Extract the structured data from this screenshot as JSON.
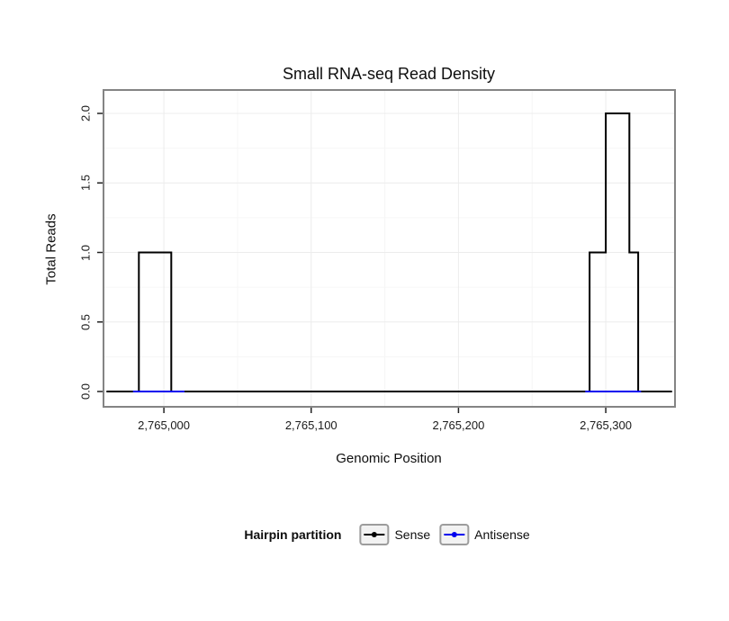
{
  "chart_data": {
    "type": "line",
    "title": "Small RNA-seq Read Density",
    "xlabel": "Genomic Position",
    "ylabel": "Total Reads",
    "legend_title": "Hairpin partition",
    "legend_position": "bottom",
    "grid": true,
    "panel_border_color": "#848484",
    "xlim": [
      2764959,
      2765347
    ],
    "ylim": [
      0,
      2
    ],
    "x_ticks": [
      {
        "value": 2765000,
        "label": "2,765,000"
      },
      {
        "value": 2765100,
        "label": "2,765,100"
      },
      {
        "value": 2765200,
        "label": "2,765,200"
      },
      {
        "value": 2765300,
        "label": "2,765,300"
      }
    ],
    "y_ticks": [
      {
        "value": 0,
        "label": "0.0"
      },
      {
        "value": 0.5,
        "label": "0.5"
      },
      {
        "value": 1,
        "label": "1.0"
      },
      {
        "value": 1.5,
        "label": "1.5"
      },
      {
        "value": 2,
        "label": "2.0"
      }
    ],
    "x_minor": [
      2765050,
      2765150,
      2765250
    ],
    "y_minor": [
      0.25,
      0.75,
      1.25,
      1.75
    ],
    "series": [
      {
        "name": "Sense",
        "color": "#000000",
        "segments": [
          [
            [
              2764961,
              0
            ],
            [
              2764983,
              0
            ],
            [
              2764983,
              1
            ],
            [
              2765005,
              1
            ],
            [
              2765005,
              0
            ],
            [
              2765289,
              0
            ],
            [
              2765289,
              1
            ],
            [
              2765300,
              1
            ],
            [
              2765300,
              2
            ],
            [
              2765316,
              2
            ],
            [
              2765316,
              1
            ],
            [
              2765322,
              1
            ],
            [
              2765322,
              0
            ],
            [
              2765345,
              0
            ]
          ]
        ]
      },
      {
        "name": "Antisense",
        "color": "#0000ee",
        "segments": [
          [
            [
              2764979,
              0
            ],
            [
              2765014,
              0
            ]
          ],
          [
            [
              2765286,
              0
            ],
            [
              2765324,
              0
            ]
          ]
        ]
      }
    ]
  }
}
